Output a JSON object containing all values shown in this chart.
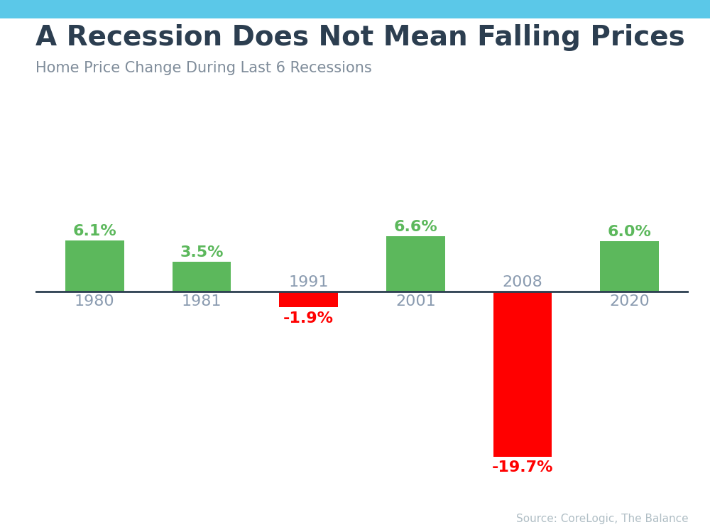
{
  "title": "A Recession Does Not Mean Falling Prices",
  "subtitle": "Home Price Change During Last 6 Recessions",
  "source": "Source: CoreLogic, The Balance",
  "categories": [
    "1980",
    "1981",
    "1991",
    "2001",
    "2008",
    "2020"
  ],
  "values": [
    6.1,
    3.5,
    -1.9,
    6.6,
    -19.7,
    6.0
  ],
  "bar_color_positive": "#5cb85c",
  "bar_color_negative": "#ff0000",
  "label_color_positive": "#5cb85c",
  "label_color_negative": "#ff0000",
  "label_color_year": "#8a9bb0",
  "title_color": "#2c3e50",
  "subtitle_color": "#7f8c9a",
  "source_color": "#b0bec5",
  "background_color": "#ffffff",
  "top_bar_color": "#5bc8e8",
  "title_fontsize": 28,
  "subtitle_fontsize": 15,
  "source_fontsize": 11,
  "value_label_fontsize": 16,
  "year_label_fontsize": 16,
  "ylim": [
    -23,
    10
  ],
  "bar_width": 0.55
}
